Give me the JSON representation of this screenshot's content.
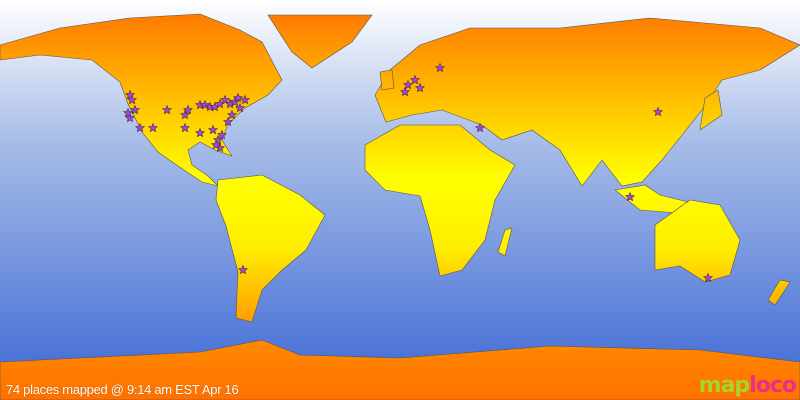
{
  "caption": "74 places mapped @ 9:14 am EST Apr 16",
  "logo": {
    "part1": "map",
    "part2": "loco"
  },
  "colors": {
    "ocean_top": "#ffffff",
    "ocean_bottom": "#3a66d4",
    "land_pole": "#ff7a00",
    "land_equator": "#ffff00",
    "marker": "#b040e0"
  },
  "marker_icon": "star-icon"
}
